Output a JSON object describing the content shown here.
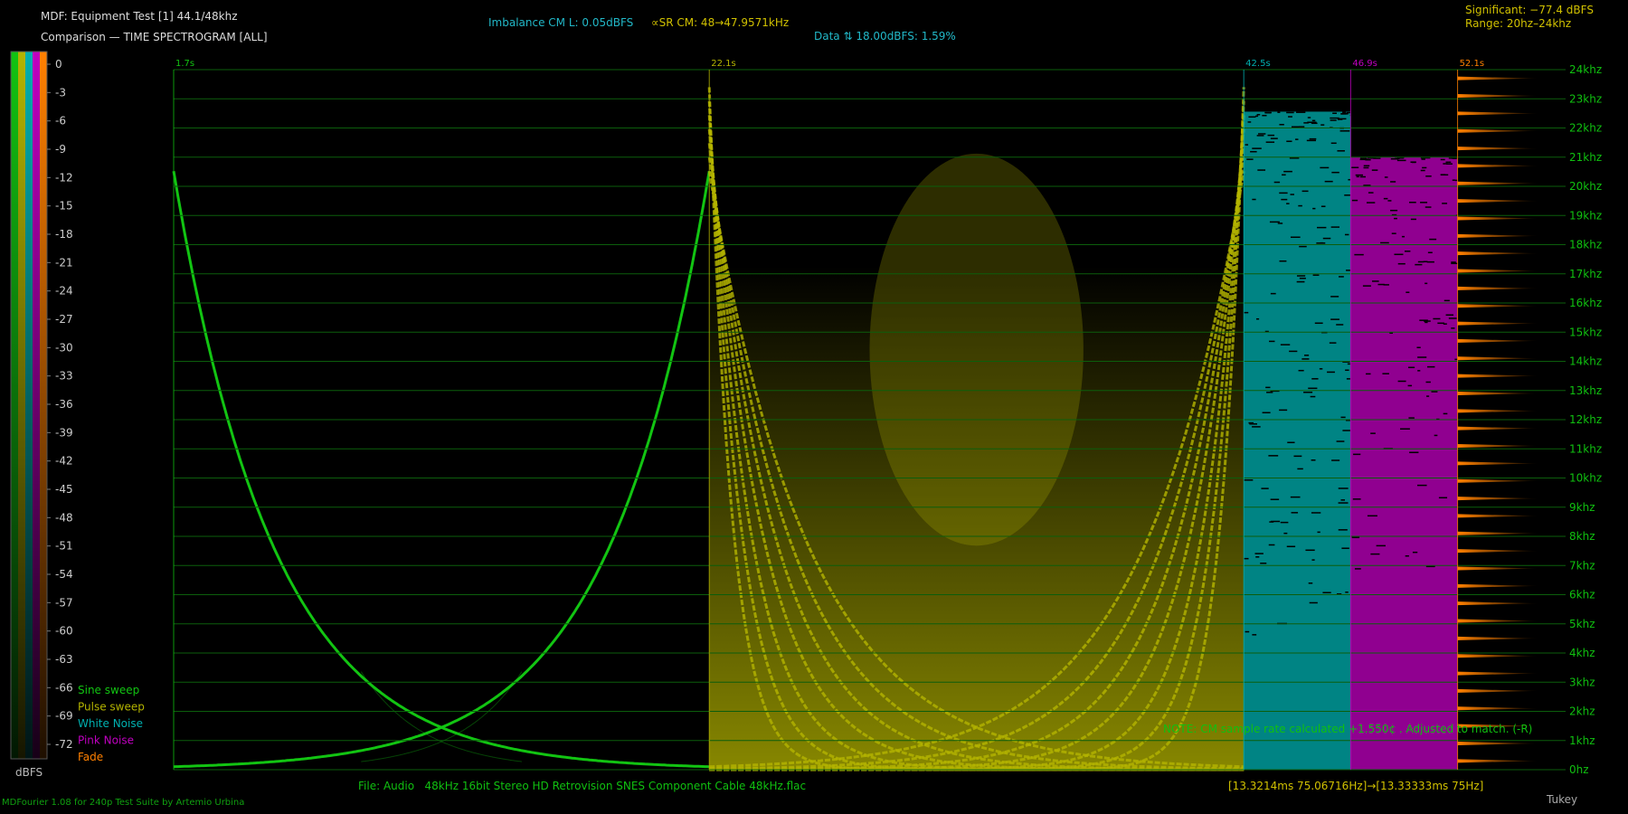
{
  "header": {
    "title": "MDF: Equipment Test [1] 44.1/48khz",
    "subtitle": "Comparison — TIME SPECTROGRAM [ALL]",
    "imbalance": "Imbalance CM L: 0.05dBFS",
    "sample_rate": "∝SR CM: 48→47.9571kHz",
    "data_stat": "Data ⇅ 18.00dBFS: 1.59%",
    "significant": "Significant: −77.4 dBFS",
    "range": "Range: 20hz–24khz"
  },
  "chart_data": {
    "type": "spectrogram",
    "ylim": [
      0,
      24000
    ],
    "yticks": [
      {
        "value": 0,
        "label": "0hz"
      },
      {
        "value": 1000,
        "label": "1khz"
      },
      {
        "value": 2000,
        "label": "2khz"
      },
      {
        "value": 3000,
        "label": "3khz"
      },
      {
        "value": 4000,
        "label": "4khz"
      },
      {
        "value": 5000,
        "label": "5khz"
      },
      {
        "value": 6000,
        "label": "6khz"
      },
      {
        "value": 7000,
        "label": "7khz"
      },
      {
        "value": 8000,
        "label": "8khz"
      },
      {
        "value": 9000,
        "label": "9khz"
      },
      {
        "value": 10000,
        "label": "10khz"
      },
      {
        "value": 11000,
        "label": "11khz"
      },
      {
        "value": 12000,
        "label": "12khz"
      },
      {
        "value": 13000,
        "label": "13khz"
      },
      {
        "value": 14000,
        "label": "14khz"
      },
      {
        "value": 15000,
        "label": "15khz"
      },
      {
        "value": 16000,
        "label": "16khz"
      },
      {
        "value": 17000,
        "label": "17khz"
      },
      {
        "value": 18000,
        "label": "18khz"
      },
      {
        "value": 19000,
        "label": "19khz"
      },
      {
        "value": 20000,
        "label": "20khz"
      },
      {
        "value": 21000,
        "label": "21khz"
      },
      {
        "value": 22000,
        "label": "22khz"
      },
      {
        "value": 23000,
        "label": "23khz"
      },
      {
        "value": 24000,
        "label": "24khz"
      }
    ],
    "grid": true,
    "grid_color": "#0c5e0c",
    "axis_color": "#10c010",
    "colorbar": {
      "label": "dBFS",
      "lim": [
        0,
        -72
      ],
      "ticks": [
        0,
        -3,
        -6,
        -9,
        -12,
        -15,
        -18,
        -21,
        -24,
        -27,
        -30,
        -33,
        -36,
        -39,
        -42,
        -45,
        -48,
        -51,
        -54,
        -57,
        -60,
        -63,
        -66,
        -69,
        -72
      ]
    },
    "series": [
      {
        "name": "Sine sweep",
        "color": "#12c412",
        "start": {
          "value": 1.7,
          "label": "1.7s"
        }
      },
      {
        "name": "Pulse sweep",
        "color": "#b4b400",
        "start": {
          "value": 22.1,
          "label": "22.1s"
        }
      },
      {
        "name": "White Noise",
        "color": "#00b0b0",
        "start": {
          "value": 42.5,
          "label": "42.5s"
        }
      },
      {
        "name": "Pink Noise",
        "color": "#c000c0",
        "start": {
          "value": 46.9,
          "label": "46.9s"
        }
      },
      {
        "name": "Fade",
        "color": "#ff8000",
        "start": {
          "value": 52.1,
          "label": "52.1s"
        }
      }
    ],
    "note": "NOTE: CM sample rate calculated +1.550¢ . Adjusted to match. (-R)",
    "file": "File: Audio   48kHz 16bit Stereo HD Retrovision SNES Component Cable 48kHz.flac",
    "timing": "[13.3214ms 75.06716Hz]→[13.33333ms 75Hz]"
  },
  "footer": {
    "credit": "MDFourier 1.08 for 240p Test Suite by Artemio Urbina",
    "window": "Tukey"
  }
}
